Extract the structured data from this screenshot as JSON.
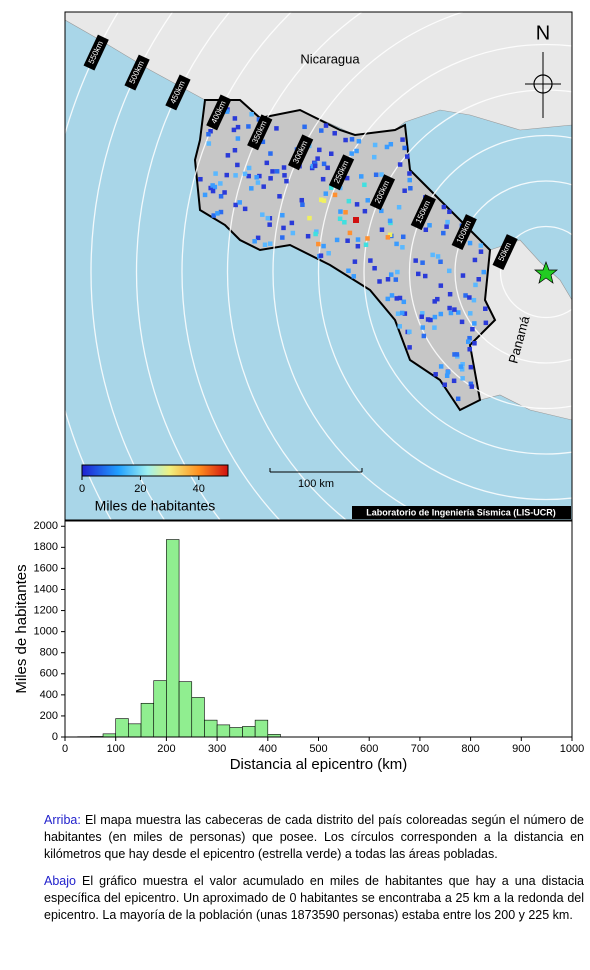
{
  "map": {
    "countries": [
      "Nicaragua",
      "Panamá"
    ],
    "north": "N",
    "rings": [
      "50km",
      "100km",
      "150km",
      "200km",
      "250km",
      "300km",
      "350km",
      "400km",
      "450km",
      "500km",
      "550km"
    ],
    "scale_bar": "100 km",
    "credit": "Laboratorio de Ingeniería Sísmica (LIS-UCR)",
    "colorbar": {
      "label": "Miles de habitantes",
      "ticks": [
        0,
        20,
        40
      ],
      "lim": [
        0,
        50
      ]
    }
  },
  "chart_data": {
    "type": "histogram",
    "bins": [
      0,
      25,
      50,
      75,
      100,
      125,
      150,
      175,
      200,
      225,
      250,
      275,
      300,
      325,
      350,
      375,
      400,
      425
    ],
    "values": [
      0,
      3,
      5,
      30,
      175,
      125,
      320,
      535,
      1874,
      525,
      375,
      160,
      115,
      90,
      100,
      160,
      25
    ],
    "color": "#90ee90",
    "xlabel": "Distancia al epicentro (km)",
    "ylabel": "Miles de habitantes",
    "xlim": [
      0,
      1000
    ],
    "xticks": [
      0,
      100,
      200,
      300,
      400,
      500,
      600,
      700,
      800,
      900,
      1000
    ],
    "ylim": [
      0,
      2050
    ],
    "yticks": [
      0,
      200,
      400,
      600,
      800,
      1000,
      1200,
      1400,
      1600,
      1800,
      2000
    ]
  },
  "caption": {
    "top_label": "Arriba:",
    "top_text": "El mapa muestra las cabeceras de cada distrito del país coloreadas según el número de habitantes (en miles de personas) que posee. Los círculos corresponden a la distancia en kilómetros que hay desde el epicentro (estrella verde) a todas las áreas pobladas.",
    "bottom_label": "Abajo",
    "bottom_text": "El gráfico muestra el valor acumulado en miles de habitantes que hay a una distacia específica del epicentro. Un aproximado de 0 habitantes se encontraba a 25 km a la redonda del epicentro. La mayoría de la población (unas 1873590 personas) estaba entre los 200 y 225 km."
  }
}
